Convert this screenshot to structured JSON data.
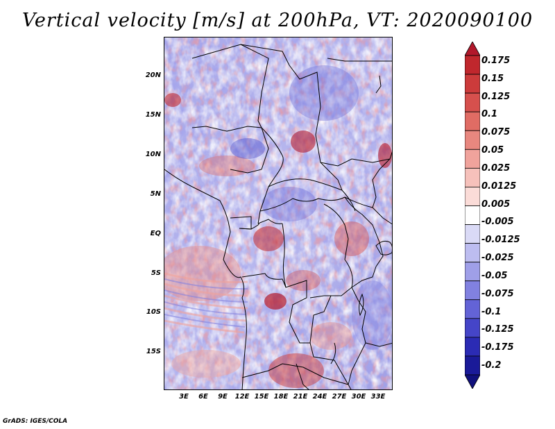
{
  "title": "Vertical velocity [m/s] at 200hPa, VT: 2020090100",
  "credit": "GrADS: IGES/COLA",
  "map": {
    "variable": "Vertical velocity",
    "units": "m/s",
    "level": "200hPa",
    "valid_time": "2020090100",
    "lat_labels": [
      "20N",
      "15N",
      "10N",
      "5N",
      "EQ",
      "5S",
      "10S",
      "15S"
    ],
    "lon_labels": [
      "3E",
      "6E",
      "9E",
      "12E",
      "15E",
      "18E",
      "21E",
      "24E",
      "27E",
      "30E",
      "33E"
    ]
  },
  "colorbar": {
    "labels": [
      "0.175",
      "0.15",
      "0.125",
      "0.1",
      "0.075",
      "0.05",
      "0.025",
      "0.0125",
      "0.005",
      "-0.005",
      "-0.0125",
      "-0.025",
      "-0.05",
      "-0.075",
      "-0.1",
      "-0.125",
      "-0.175",
      "-0.2"
    ],
    "colors": [
      "#b2182b",
      "#c0272d",
      "#cc3b3b",
      "#d6504d",
      "#e06c64",
      "#e8877f",
      "#f0a39c",
      "#f6c1bb",
      "#fbdcd8",
      "#ffffff",
      "#dadaf6",
      "#bdbdf0",
      "#9f9fe8",
      "#8181e0",
      "#6363d6",
      "#4545c8",
      "#2b2bb4",
      "#1a1a98",
      "#10107c"
    ]
  }
}
